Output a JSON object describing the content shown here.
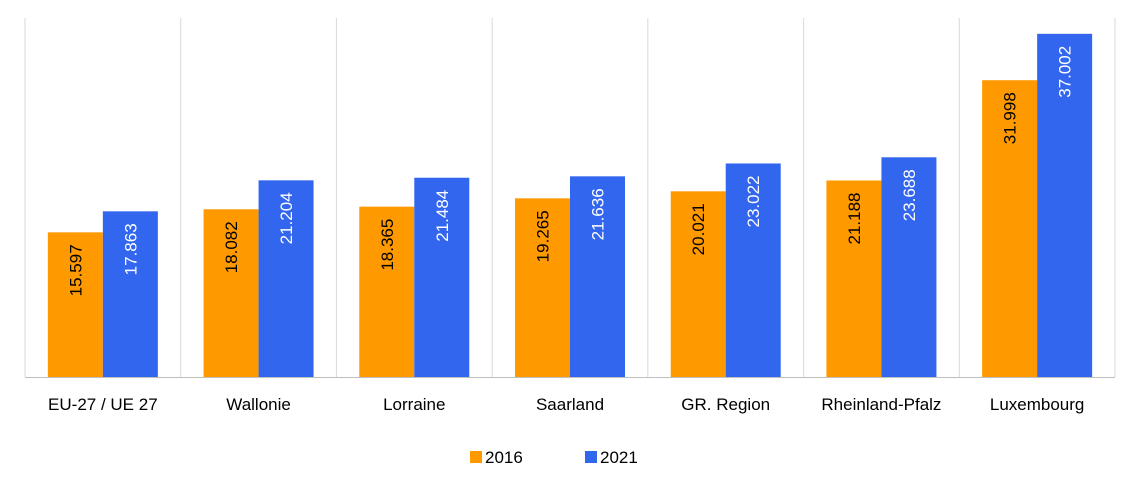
{
  "chart_data": {
    "type": "bar",
    "categories": [
      "EU-27 / UE 27",
      "Wallonie",
      "Lorraine",
      "Saarland",
      "GR. Region",
      "Rheinland-Pfalz",
      "Luxembourg"
    ],
    "series": [
      {
        "name": "2016",
        "values": [
          15.597,
          18.082,
          18.365,
          19.265,
          20.021,
          21.188,
          31.998
        ],
        "labels": [
          "15.597",
          "18.082",
          "18.365",
          "19.265",
          "20.021",
          "21.188",
          "31.998"
        ],
        "color": "#ff9900",
        "label_color": "#000000"
      },
      {
        "name": "2021",
        "values": [
          17.863,
          21.204,
          21.484,
          21.636,
          23.022,
          23.688,
          37.002
        ],
        "labels": [
          "17.863",
          "21.204",
          "21.484",
          "21.636",
          "23.022",
          "23.688",
          "37.002"
        ],
        "color": "#3366ee",
        "label_color": "#ffffff"
      }
    ],
    "ylim": [
      0,
      40
    ],
    "grid": "vertical",
    "legend_position": "bottom-center",
    "gridline_color": "#d9d9d9",
    "axis_color": "#bfbfbf"
  }
}
